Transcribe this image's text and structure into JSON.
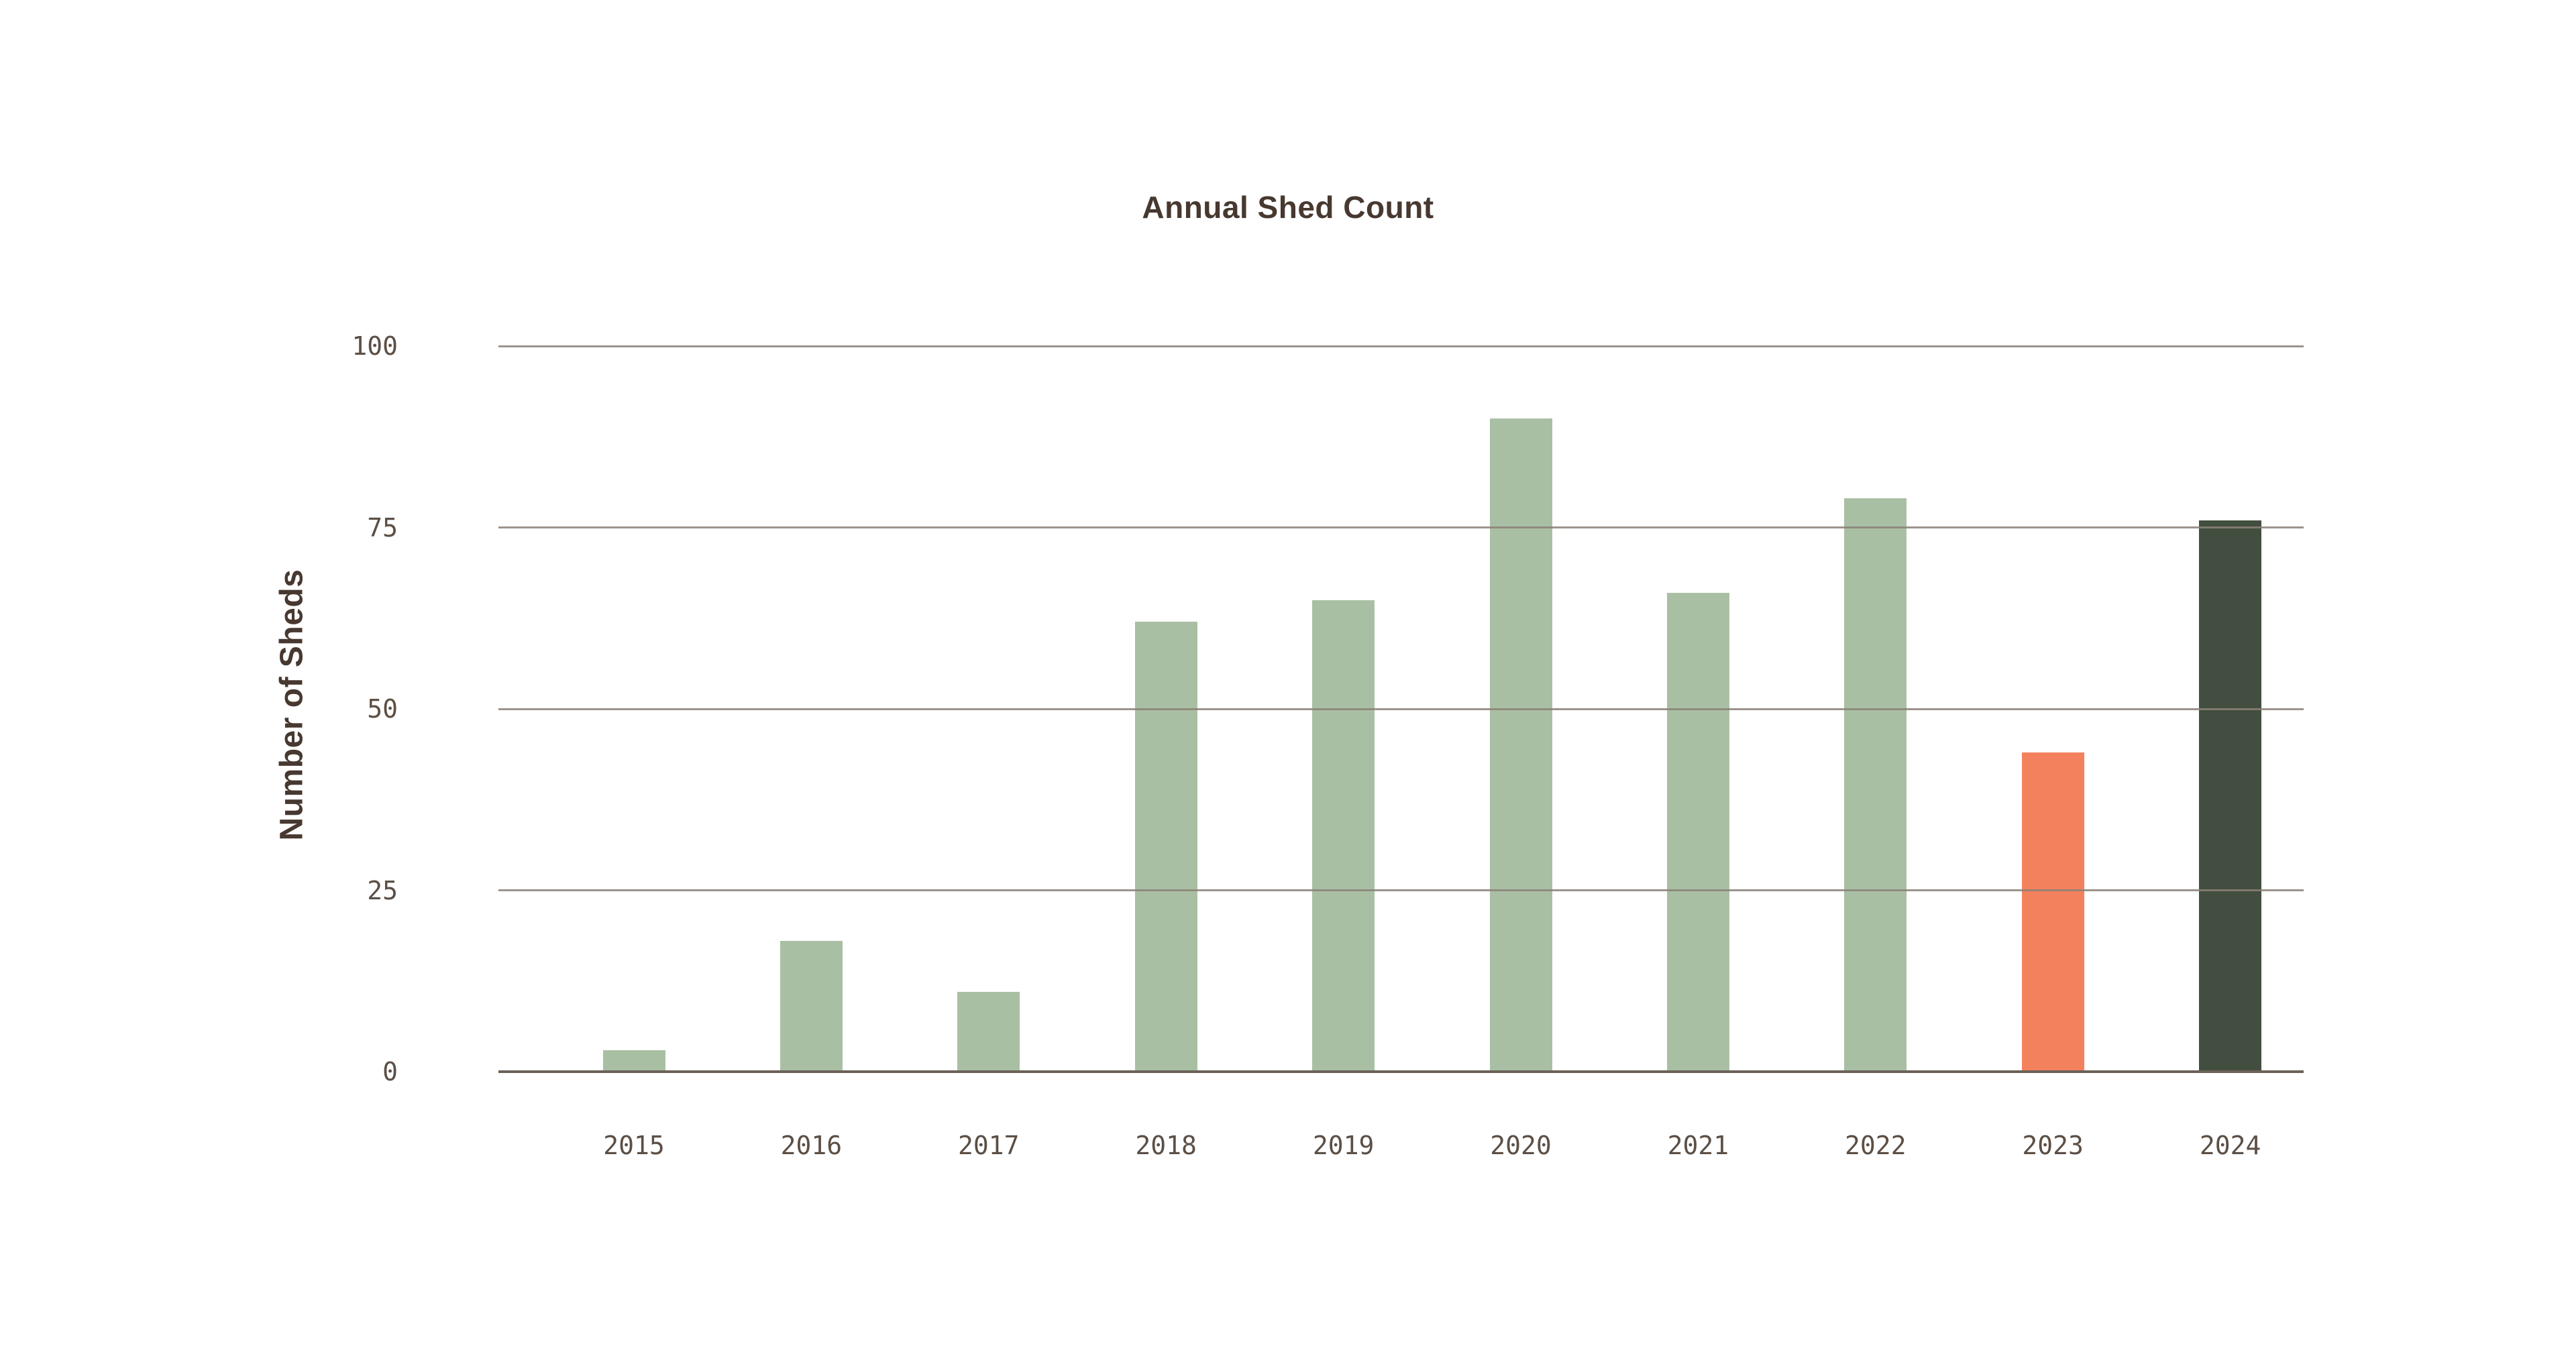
{
  "chart_data": {
    "type": "bar",
    "title": "Annual Shed Count",
    "ylabel": "Number of Sheds",
    "xlabel": "",
    "categories": [
      "2015",
      "2016",
      "2017",
      "2018",
      "2019",
      "2020",
      "2021",
      "2022",
      "2023",
      "2024"
    ],
    "values": [
      3,
      18,
      11,
      62,
      65,
      90,
      66,
      79,
      44,
      76
    ],
    "bar_colors": [
      "#A9BFA3",
      "#A9BFA3",
      "#A9BFA3",
      "#A9BFA3",
      "#A9BFA3",
      "#A9BFA3",
      "#A9BFA3",
      "#A9BFA3",
      "#F4815D",
      "#424E3F"
    ],
    "yticks": [
      0,
      25,
      50,
      75,
      100
    ],
    "ylim": [
      0,
      100
    ],
    "grid": "horizontal",
    "legend": "none",
    "colors": {
      "background": "#FFFFFF",
      "bar_default": "#A9BFA3",
      "bar_highlight_orange": "#F4815D",
      "bar_highlight_dark": "#424E3F",
      "gridline": "#8B8178",
      "axis_line": "#6B6258",
      "tick_text": "#5C4F45",
      "title_text": "#473830"
    }
  }
}
